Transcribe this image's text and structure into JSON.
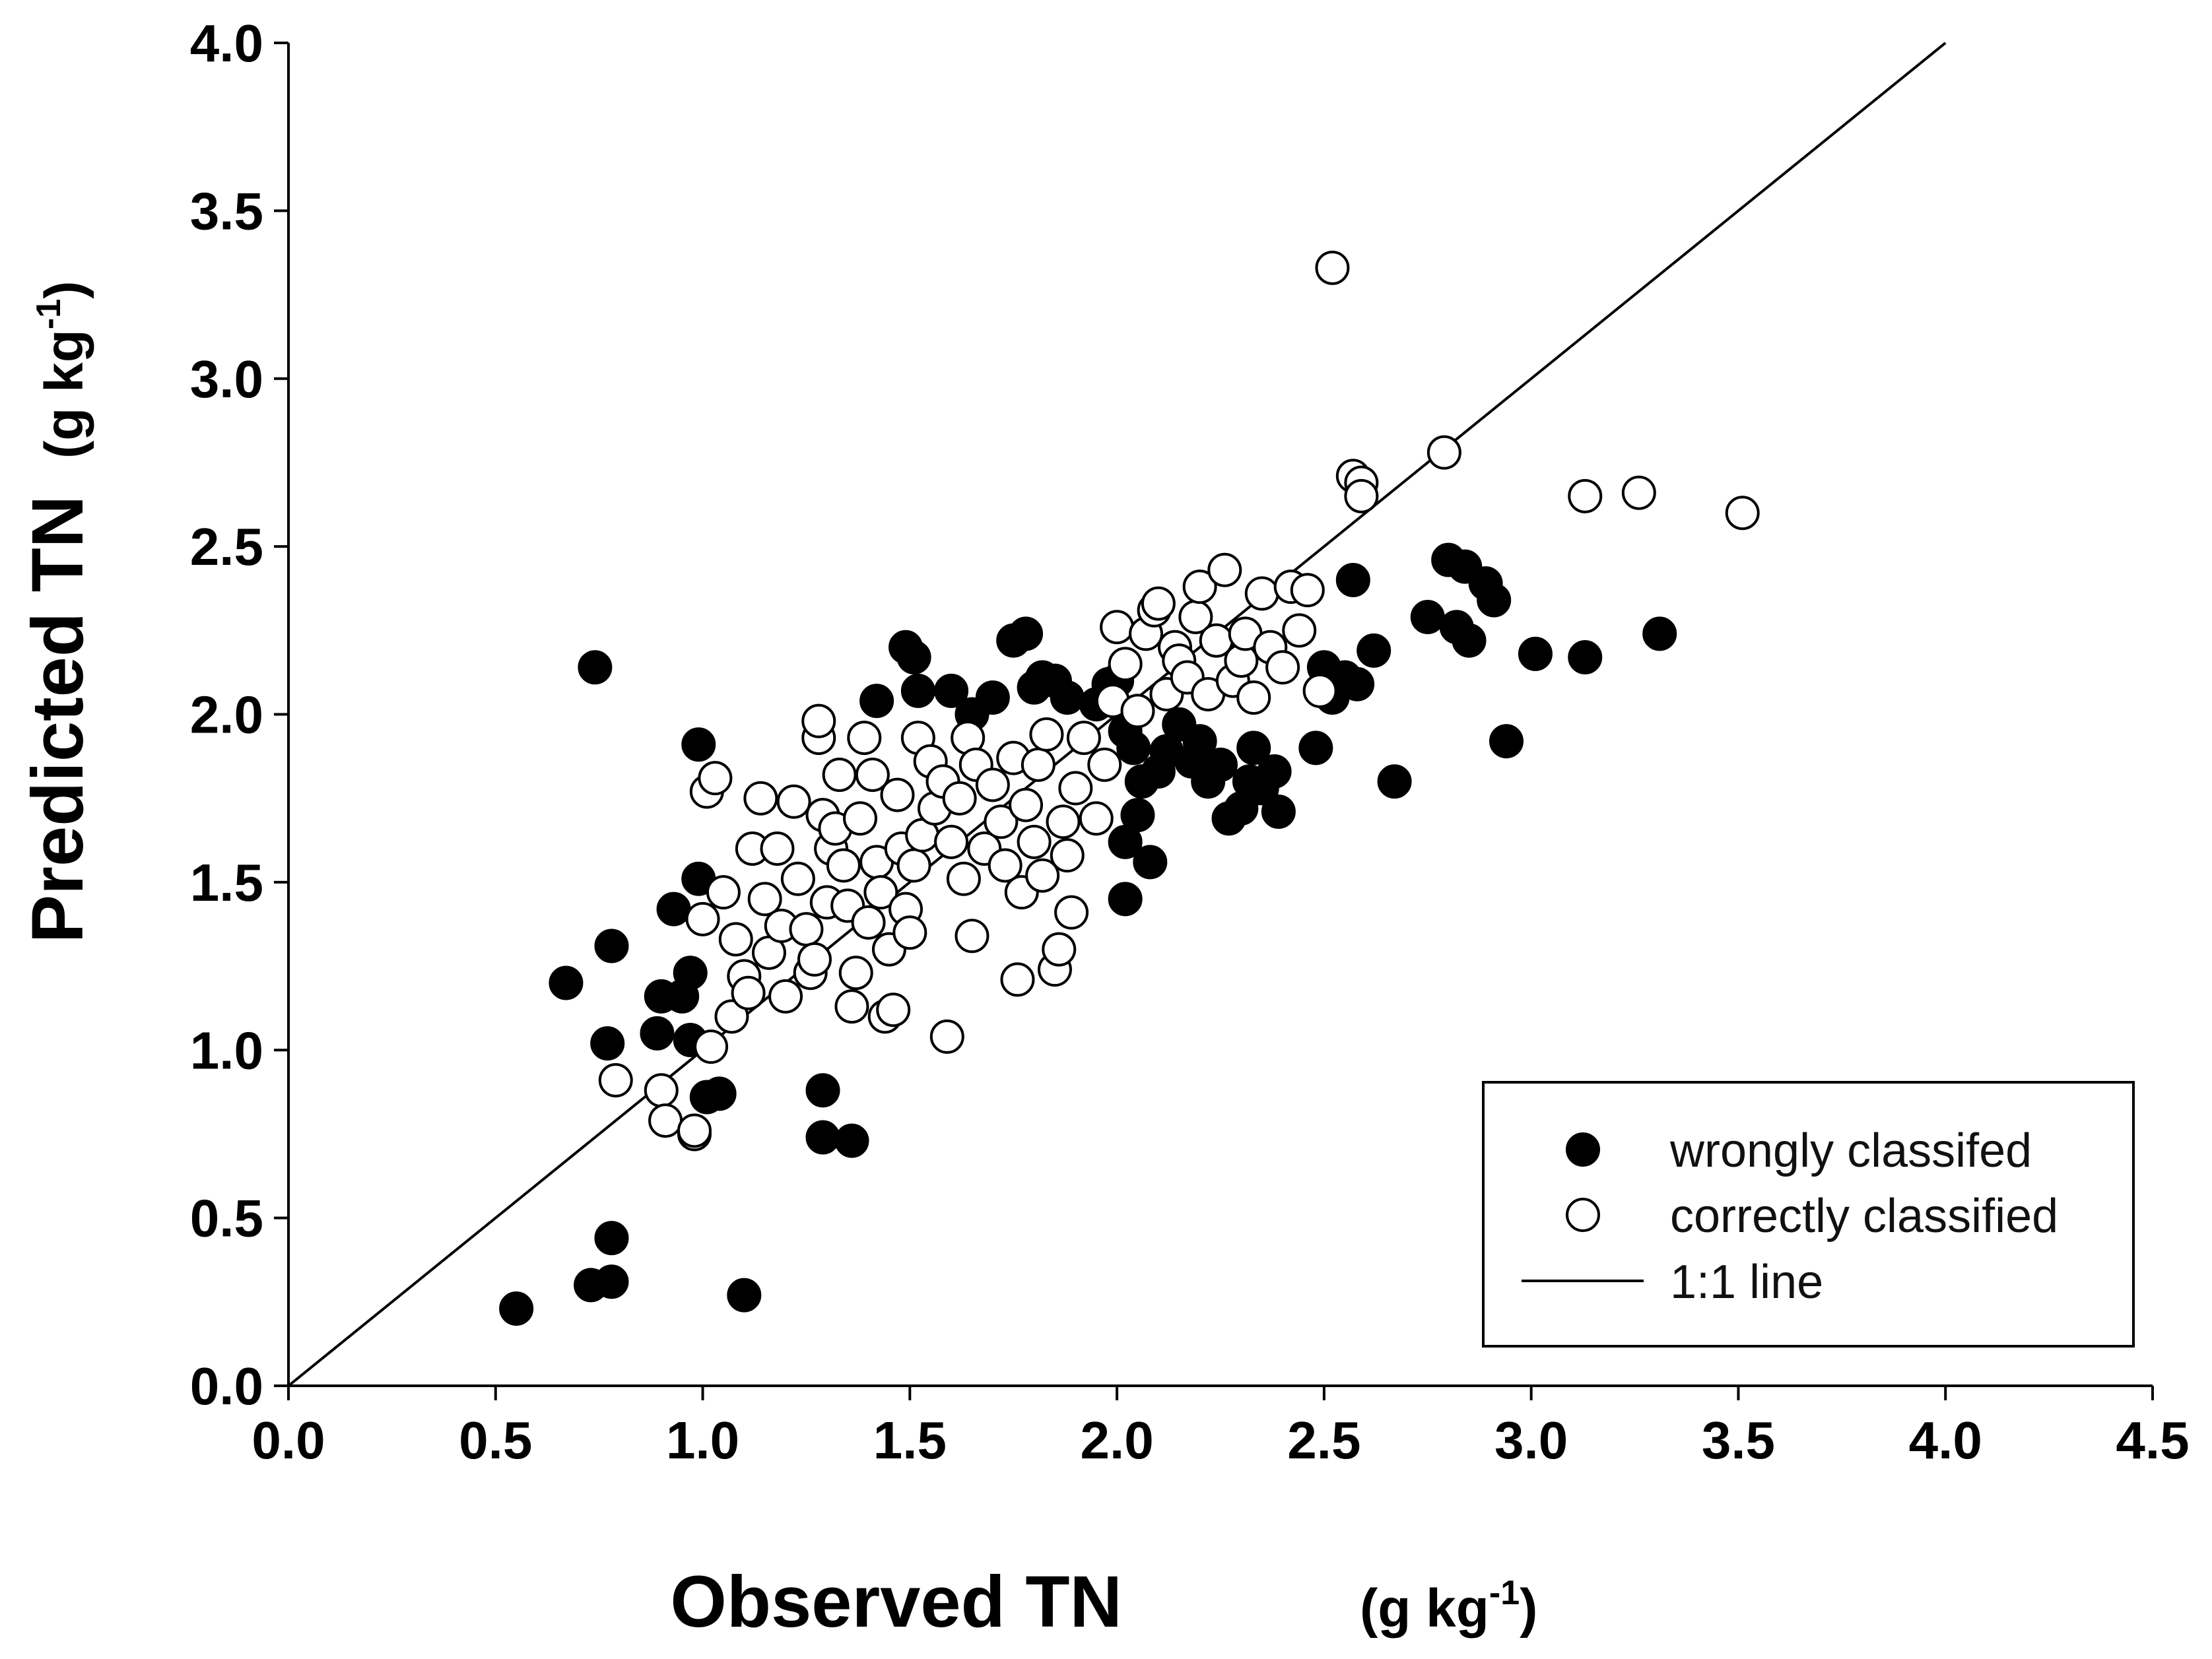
{
  "chart_data": {
    "type": "scatter",
    "title": "",
    "xlabel": "Observed TN",
    "xlabel_unit": "(g kg",
    "ylabel": "Predicted TN",
    "ylabel_unit": "(g kg",
    "unit_exponent": "-1",
    "unit_close": ")",
    "xlim": [
      0.0,
      4.5
    ],
    "ylim": [
      0.0,
      4.0
    ],
    "x_ticks": [
      "0.0",
      "0.5",
      "1.0",
      "1.5",
      "2.0",
      "2.5",
      "3.0",
      "3.5",
      "4.0",
      "4.5"
    ],
    "y_ticks": [
      "0.0",
      "0.5",
      "1.0",
      "1.5",
      "2.0",
      "2.5",
      "3.0",
      "3.5",
      "4.0"
    ],
    "grid": false,
    "legend_position": "bottom-right",
    "reference_line": {
      "name": "1:1 line",
      "from": [
        0,
        0
      ],
      "to": [
        4.0,
        4.0
      ],
      "color": "#000000"
    },
    "series": [
      {
        "name": "wrongly classifed",
        "marker": "filled-circle",
        "color": "#000000",
        "points": [
          [
            0.55,
            0.23
          ],
          [
            0.73,
            0.3
          ],
          [
            0.78,
            0.31
          ],
          [
            0.78,
            0.44
          ],
          [
            1.1,
            0.27
          ],
          [
            1.29,
            0.88
          ],
          [
            1.29,
            0.74
          ],
          [
            1.36,
            0.73
          ],
          [
            1.01,
            0.86
          ],
          [
            1.04,
            0.87
          ],
          [
            0.67,
            1.2
          ],
          [
            0.77,
            1.02
          ],
          [
            0.78,
            1.31
          ],
          [
            0.89,
            1.05
          ],
          [
            0.9,
            1.16
          ],
          [
            0.93,
            1.42
          ],
          [
            0.95,
            1.16
          ],
          [
            0.97,
            1.23
          ],
          [
            0.97,
            1.03
          ],
          [
            0.99,
            1.51
          ],
          [
            0.99,
            1.91
          ],
          [
            0.74,
            2.14
          ],
          [
            1.42,
            2.04
          ],
          [
            1.49,
            2.2
          ],
          [
            1.51,
            2.17
          ],
          [
            1.52,
            2.07
          ],
          [
            1.6,
            2.07
          ],
          [
            1.65,
            2.0
          ],
          [
            1.7,
            2.05
          ],
          [
            1.75,
            2.22
          ],
          [
            1.78,
            2.24
          ],
          [
            1.8,
            2.08
          ],
          [
            1.82,
            2.11
          ],
          [
            1.85,
            2.1
          ],
          [
            1.88,
            2.05
          ],
          [
            1.95,
            2.03
          ],
          [
            1.98,
            2.09
          ],
          [
            2.0,
            2.1
          ],
          [
            2.02,
            1.95
          ],
          [
            2.04,
            1.9
          ],
          [
            2.06,
            1.8
          ],
          [
            2.02,
            1.45
          ],
          [
            2.08,
            1.56
          ],
          [
            2.02,
            1.62
          ],
          [
            2.05,
            1.7
          ],
          [
            2.1,
            1.83
          ],
          [
            2.12,
            1.89
          ],
          [
            2.15,
            1.97
          ],
          [
            2.18,
            1.86
          ],
          [
            2.2,
            1.92
          ],
          [
            2.22,
            1.8
          ],
          [
            2.25,
            1.85
          ],
          [
            2.27,
            1.69
          ],
          [
            2.3,
            1.72
          ],
          [
            2.32,
            1.8
          ],
          [
            2.33,
            1.9
          ],
          [
            2.35,
            1.78
          ],
          [
            2.38,
            1.83
          ],
          [
            2.39,
            1.71
          ],
          [
            2.48,
            1.9
          ],
          [
            2.5,
            2.14
          ],
          [
            2.52,
            2.05
          ],
          [
            2.55,
            2.11
          ],
          [
            2.57,
            2.4
          ],
          [
            2.58,
            2.09
          ],
          [
            2.62,
            2.19
          ],
          [
            2.67,
            1.8
          ],
          [
            2.75,
            2.29
          ],
          [
            2.8,
            2.46
          ],
          [
            2.82,
            2.26
          ],
          [
            2.84,
            2.44
          ],
          [
            2.85,
            2.22
          ],
          [
            2.89,
            2.39
          ],
          [
            2.91,
            2.34
          ],
          [
            2.94,
            1.92
          ],
          [
            3.01,
            2.18
          ],
          [
            3.13,
            2.17
          ],
          [
            3.31,
            2.24
          ]
        ]
      },
      {
        "name": "correctly classified",
        "marker": "open-circle",
        "color": "#000000",
        "points": [
          [
            0.79,
            0.91
          ],
          [
            0.9,
            0.88
          ],
          [
            0.91,
            0.79
          ],
          [
            0.98,
            0.75
          ],
          [
            0.98,
            0.76
          ],
          [
            1.0,
            1.39
          ],
          [
            1.02,
            1.01
          ],
          [
            1.01,
            1.77
          ],
          [
            1.03,
            1.81
          ],
          [
            1.05,
            1.47
          ],
          [
            1.07,
            1.1
          ],
          [
            1.08,
            1.33
          ],
          [
            1.1,
            1.22
          ],
          [
            1.11,
            1.17
          ],
          [
            1.12,
            1.6
          ],
          [
            1.14,
            1.75
          ],
          [
            1.15,
            1.45
          ],
          [
            1.16,
            1.29
          ],
          [
            1.18,
            1.6
          ],
          [
            1.19,
            1.37
          ],
          [
            1.2,
            1.16
          ],
          [
            1.22,
            1.74
          ],
          [
            1.23,
            1.51
          ],
          [
            1.25,
            1.36
          ],
          [
            1.26,
            1.23
          ],
          [
            1.27,
            1.27
          ],
          [
            1.28,
            1.93
          ],
          [
            1.28,
            1.98
          ],
          [
            1.29,
            1.7
          ],
          [
            1.3,
            1.44
          ],
          [
            1.31,
            1.6
          ],
          [
            1.32,
            1.66
          ],
          [
            1.33,
            1.82
          ],
          [
            1.34,
            1.55
          ],
          [
            1.35,
            1.43
          ],
          [
            1.36,
            1.13
          ],
          [
            1.37,
            1.23
          ],
          [
            1.38,
            1.69
          ],
          [
            1.39,
            1.93
          ],
          [
            1.4,
            1.38
          ],
          [
            1.41,
            1.82
          ],
          [
            1.42,
            1.56
          ],
          [
            1.43,
            1.47
          ],
          [
            1.44,
            1.1
          ],
          [
            1.45,
            1.3
          ],
          [
            1.46,
            1.12
          ],
          [
            1.47,
            1.76
          ],
          [
            1.48,
            1.6
          ],
          [
            1.49,
            1.42
          ],
          [
            1.5,
            1.35
          ],
          [
            1.51,
            1.55
          ],
          [
            1.52,
            1.93
          ],
          [
            1.53,
            1.64
          ],
          [
            1.55,
            1.86
          ],
          [
            1.56,
            1.72
          ],
          [
            1.58,
            1.8
          ],
          [
            1.59,
            1.04
          ],
          [
            1.6,
            1.62
          ],
          [
            1.62,
            1.75
          ],
          [
            1.63,
            1.51
          ],
          [
            1.64,
            1.93
          ],
          [
            1.65,
            1.34
          ],
          [
            1.66,
            1.85
          ],
          [
            1.68,
            1.6
          ],
          [
            1.7,
            1.79
          ],
          [
            1.72,
            1.68
          ],
          [
            1.73,
            1.55
          ],
          [
            1.75,
            1.87
          ],
          [
            1.76,
            1.21
          ],
          [
            1.77,
            1.47
          ],
          [
            1.78,
            1.73
          ],
          [
            1.8,
            1.62
          ],
          [
            1.81,
            1.85
          ],
          [
            1.82,
            1.52
          ],
          [
            1.83,
            1.94
          ],
          [
            1.85,
            1.24
          ],
          [
            1.86,
            1.3
          ],
          [
            1.87,
            1.68
          ],
          [
            1.88,
            1.58
          ],
          [
            1.89,
            1.41
          ],
          [
            1.9,
            1.78
          ],
          [
            1.92,
            1.93
          ],
          [
            1.95,
            1.69
          ],
          [
            1.97,
            1.85
          ],
          [
            1.99,
            2.04
          ],
          [
            2.0,
            2.26
          ],
          [
            2.02,
            2.15
          ],
          [
            2.05,
            2.01
          ],
          [
            2.07,
            2.24
          ],
          [
            2.09,
            2.31
          ],
          [
            2.1,
            2.33
          ],
          [
            2.12,
            2.06
          ],
          [
            2.14,
            2.2
          ],
          [
            2.15,
            2.16
          ],
          [
            2.17,
            2.11
          ],
          [
            2.19,
            2.29
          ],
          [
            2.2,
            2.38
          ],
          [
            2.22,
            2.06
          ],
          [
            2.24,
            2.22
          ],
          [
            2.26,
            2.43
          ],
          [
            2.28,
            2.1
          ],
          [
            2.3,
            2.16
          ],
          [
            2.31,
            2.24
          ],
          [
            2.33,
            2.05
          ],
          [
            2.35,
            2.36
          ],
          [
            2.37,
            2.2
          ],
          [
            2.4,
            2.14
          ],
          [
            2.42,
            2.38
          ],
          [
            2.44,
            2.25
          ],
          [
            2.46,
            2.37
          ],
          [
            2.49,
            2.07
          ],
          [
            2.52,
            3.33
          ],
          [
            2.57,
            2.71
          ],
          [
            2.59,
            2.69
          ],
          [
            2.59,
            2.65
          ],
          [
            2.79,
            2.78
          ],
          [
            3.13,
            2.65
          ],
          [
            3.26,
            2.66
          ],
          [
            3.51,
            2.6
          ]
        ]
      }
    ]
  }
}
